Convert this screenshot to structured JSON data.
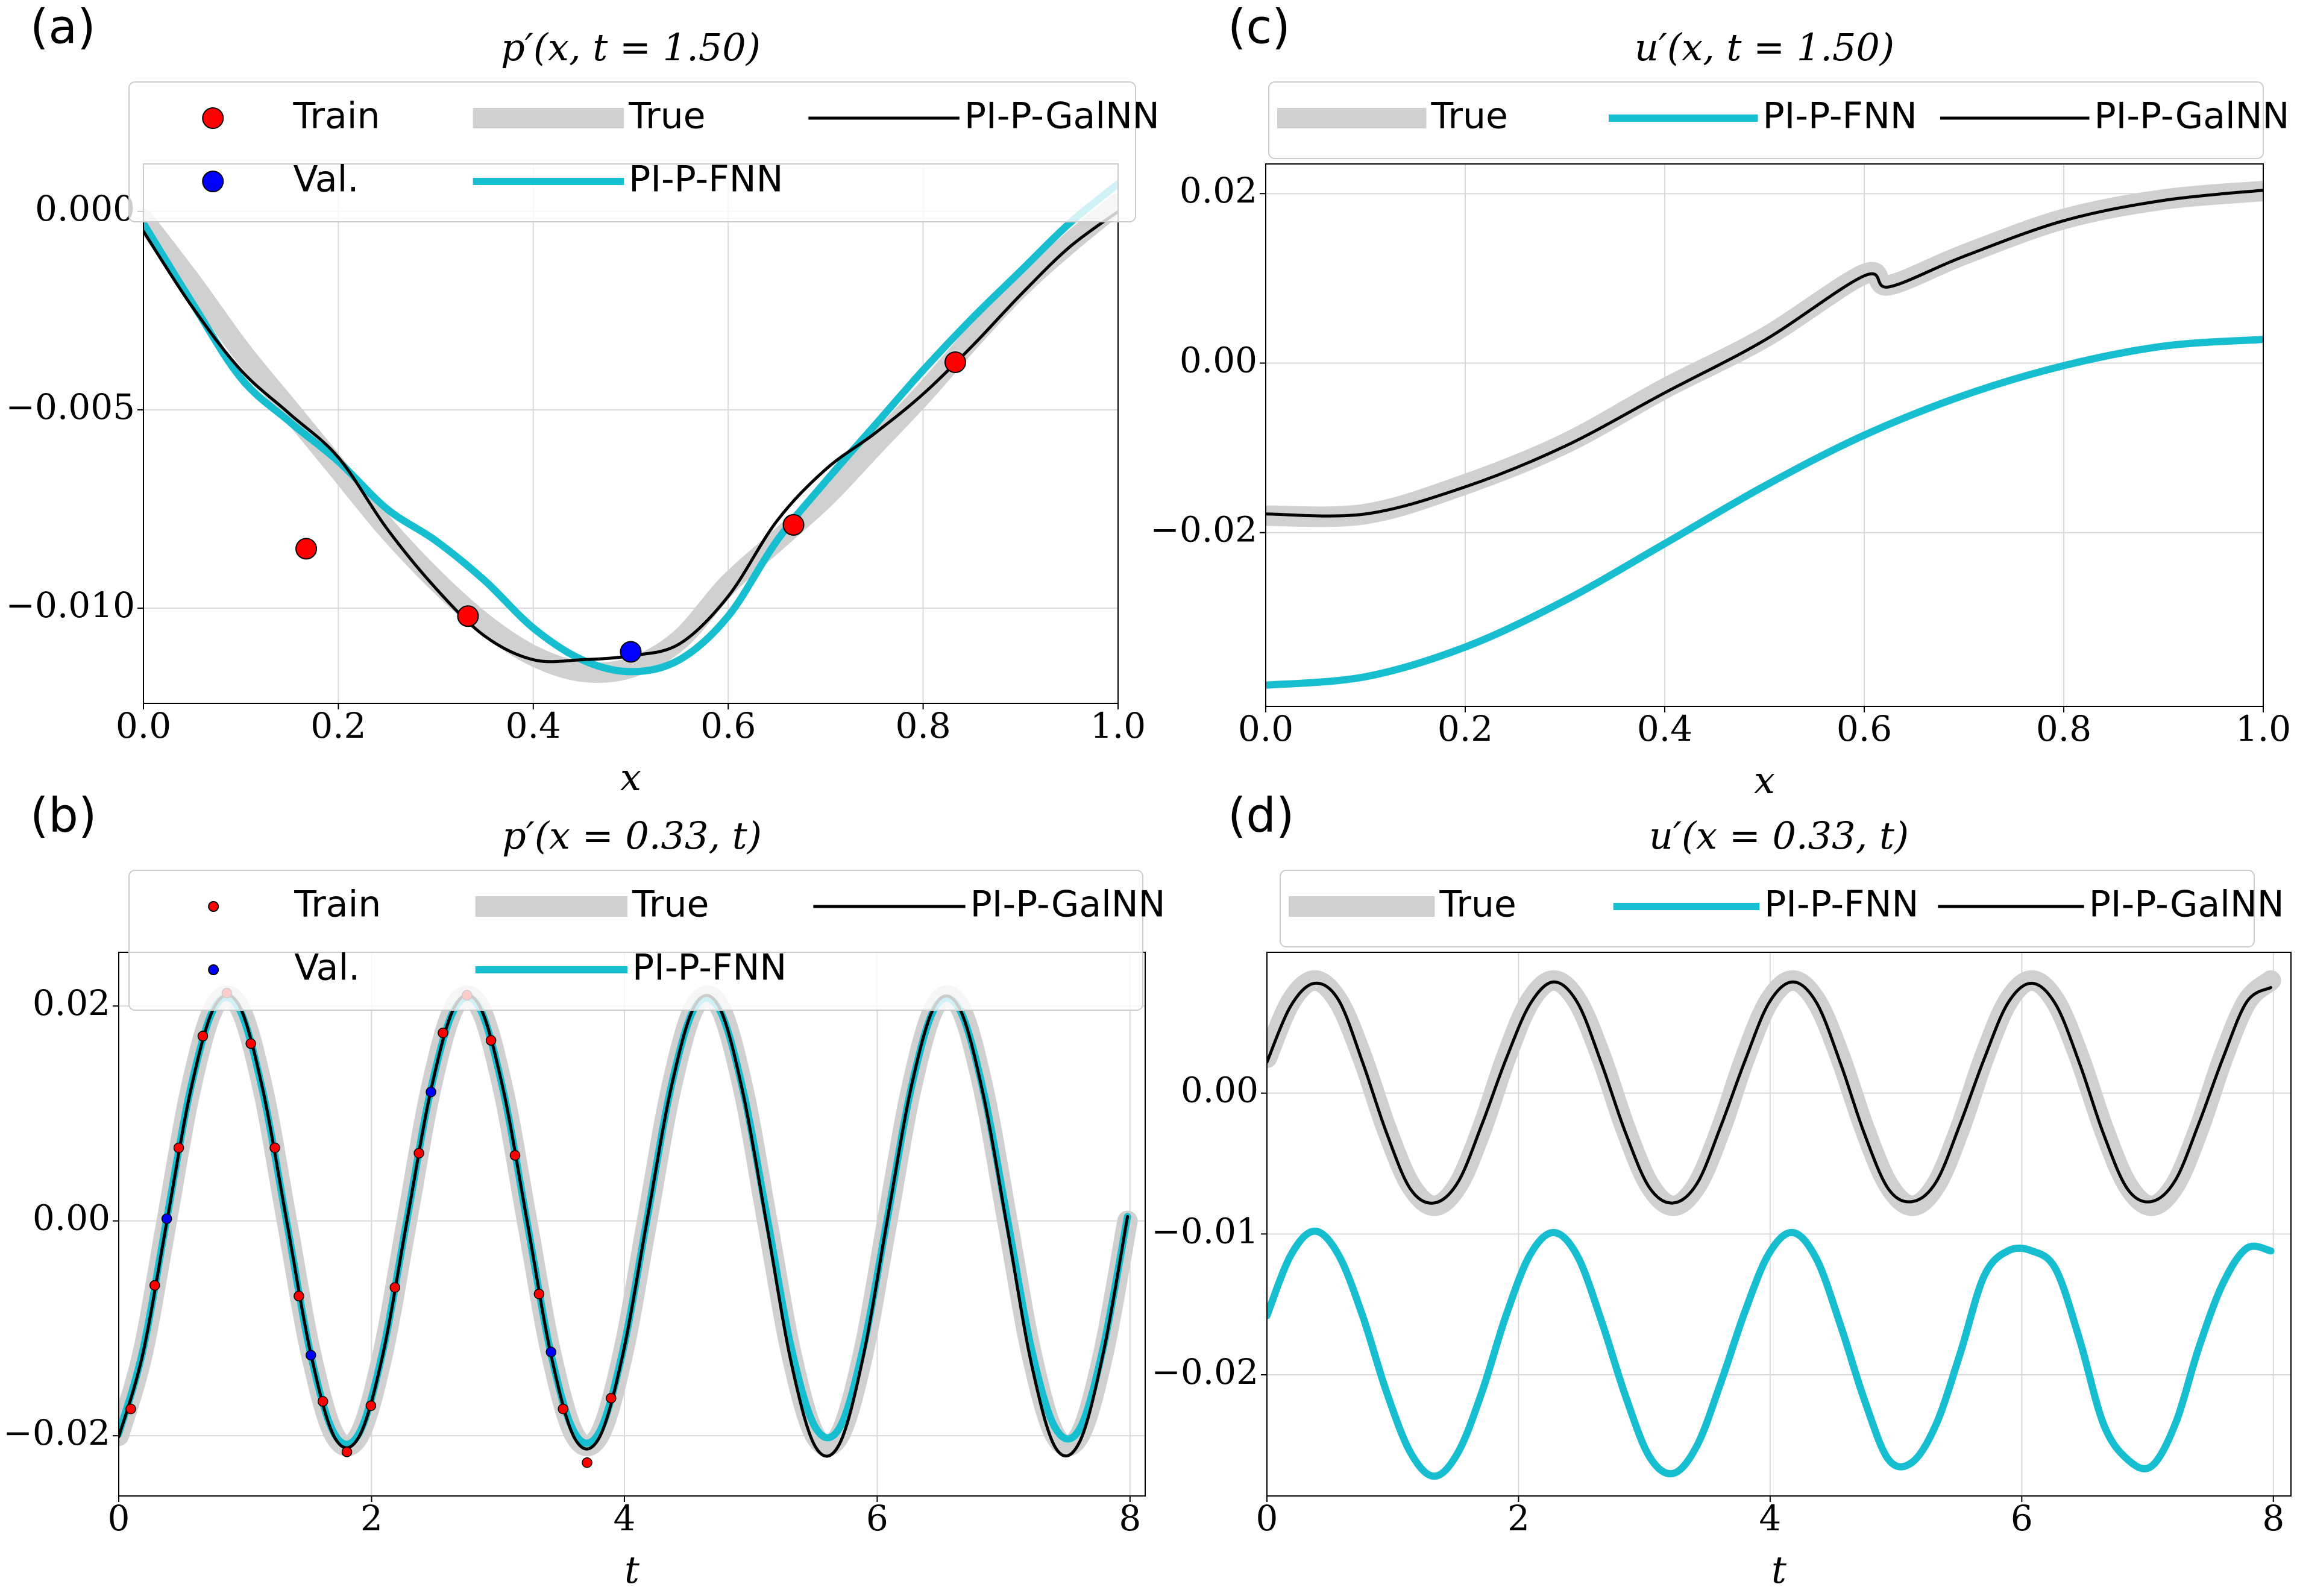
{
  "chart_data": [
    {
      "type": "line",
      "label": "(a)",
      "title": "p′(x, t = 1.50)",
      "xlabel": "x",
      "xlim": [
        0,
        1
      ],
      "ylim": [
        -0.0124,
        0.0012
      ],
      "xticks": [
        {
          "value": 0,
          "label": "0.0"
        },
        0.2,
        0.4,
        0.6,
        0.8,
        {
          "value": 1,
          "label": "1.0"
        }
      ],
      "yticks": [
        {
          "value": -0.01,
          "label": "−0.010"
        },
        {
          "value": -0.005,
          "label": "−0.005"
        },
        {
          "value": 0,
          "label": "0.000"
        }
      ],
      "grid": true,
      "legend_columns": 3,
      "x": [
        0,
        0.05,
        0.1,
        0.15,
        0.2,
        0.25,
        0.3,
        0.35,
        0.4,
        0.45,
        0.5,
        0.55,
        0.6,
        0.65,
        0.7,
        0.75,
        0.8,
        0.85,
        0.9,
        0.95,
        1
      ],
      "points": [
        {
          "name": "Train",
          "color": "#ff0000",
          "x": [
            0.167,
            0.333,
            0.667,
            0.833
          ],
          "values": [
            -0.0085,
            -0.0102,
            -0.0079,
            -0.0038
          ]
        },
        {
          "name": "Val.",
          "color": "#0000ff",
          "x": [
            0.5
          ],
          "values": [
            -0.0111
          ]
        }
      ],
      "series": [
        {
          "name": "True",
          "color": "#d0d0d0",
          "values": [
            -0.0002,
            -0.0018,
            -0.0035,
            -0.005,
            -0.0065,
            -0.008,
            -0.0093,
            -0.0104,
            -0.0112,
            -0.0116,
            -0.0115,
            -0.0108,
            -0.0094,
            -0.0083,
            -0.0072,
            -0.0059,
            -0.0046,
            -0.0032,
            -0.0019,
            -0.0008,
            0.0002
          ]
        },
        {
          "name": "PI-P-FNN",
          "color": "#17becf",
          "values": [
            -0.0003,
            -0.0023,
            -0.0042,
            -0.0053,
            -0.0063,
            -0.0075,
            -0.0083,
            -0.0093,
            -0.0105,
            -0.0113,
            -0.0116,
            -0.0113,
            -0.0102,
            -0.0083,
            -0.0068,
            -0.0054,
            -0.004,
            -0.0027,
            -0.0015,
            -0.0003,
            0.0007
          ]
        },
        {
          "name": "PI-P-GalNN",
          "color": "#000000",
          "values": [
            -0.0005,
            -0.0024,
            -0.004,
            -0.0051,
            -0.0062,
            -0.008,
            -0.0095,
            -0.0107,
            -0.0113,
            -0.0113,
            -0.0112,
            -0.0109,
            -0.0097,
            -0.0078,
            -0.0065,
            -0.0056,
            -0.0046,
            -0.0034,
            -0.0021,
            -0.0009,
            0
          ]
        }
      ]
    },
    {
      "type": "line",
      "label": "(b)",
      "title": "p′(x = 0.33, t)",
      "xlabel": "t",
      "xlim": [
        0,
        8.12
      ],
      "ylim": [
        -0.0256,
        0.025
      ],
      "xticks": [
        0,
        2,
        4,
        6,
        8
      ],
      "yticks": [
        {
          "value": -0.02,
          "label": "−0.02"
        },
        {
          "value": 0,
          "label": "0.00"
        },
        0.02
      ],
      "grid": true,
      "legend_columns": 3,
      "x": [
        0,
        0.19,
        0.38,
        0.57,
        0.76,
        0.95,
        1.14,
        1.33,
        1.52,
        1.71,
        1.9,
        2.09,
        2.28,
        2.47,
        2.66,
        2.85,
        3.04,
        3.23,
        3.42,
        3.61,
        3.8,
        3.99,
        4.18,
        4.37,
        4.56,
        4.75,
        4.94,
        5.13,
        5.32,
        5.51,
        5.7,
        5.89,
        6.08,
        6.27,
        6.46,
        6.65,
        6.84,
        7.03,
        7.22,
        7.41,
        7.6,
        7.79,
        7.98
      ],
      "points": [
        {
          "name": "Train",
          "color": "#ff0000",
          "x": [
            0.095,
            0.285,
            0.475,
            0.665,
            0.855,
            1.045,
            1.235,
            1.425,
            1.615,
            1.805,
            1.995,
            2.185,
            2.375,
            2.565,
            2.755,
            2.945,
            3.135,
            3.325,
            3.515,
            3.705,
            3.895
          ],
          "values": [
            -0.0175,
            -0.006,
            0.0068,
            0.0172,
            0.0212,
            0.0165,
            0.0068,
            -0.007,
            -0.0168,
            -0.0215,
            -0.0172,
            -0.0062,
            0.0063,
            0.0175,
            0.021,
            0.0168,
            0.0061,
            -0.0068,
            -0.0175,
            -0.0225,
            -0.0165
          ]
        },
        {
          "name": "Val.",
          "color": "#0000ff",
          "x": [
            0.38,
            1.52,
            2.47,
            3.42
          ],
          "values": [
            0.0002,
            -0.0125,
            0.012,
            -0.0122
          ]
        }
      ],
      "series": [
        {
          "name": "True",
          "color": "#d0d0d0",
          "values": [
            -0.02,
            -0.0123,
            0,
            0.0123,
            0.02,
            0.02,
            0.0123,
            0,
            -0.0123,
            -0.02,
            -0.02,
            -0.0123,
            0,
            0.0123,
            0.02,
            0.02,
            0.0123,
            0,
            -0.0123,
            -0.02,
            -0.02,
            -0.0123,
            0,
            0.0123,
            0.02,
            0.02,
            0.0123,
            0,
            -0.0123,
            -0.02,
            -0.02,
            -0.0123,
            0,
            0.0123,
            0.02,
            0.02,
            0.0123,
            0,
            -0.0123,
            -0.02,
            -0.02,
            -0.0123,
            0
          ]
        },
        {
          "name": "PI-P-FNN",
          "color": "#17becf",
          "values": [
            -0.0198,
            -0.0121,
            0.0002,
            0.0124,
            0.0199,
            0.0198,
            0.012,
            -0.0002,
            -0.0125,
            -0.0199,
            -0.0198,
            -0.0121,
            0.0001,
            0.0123,
            0.0198,
            0.0199,
            0.0122,
            -0.0001,
            -0.0124,
            -0.0198,
            -0.0197,
            -0.012,
            0.0002,
            0.0125,
            0.0199,
            0.0197,
            0.0121,
            0.0003,
            -0.0118,
            -0.0192,
            -0.0193,
            -0.0118,
            0.0002,
            0.0124,
            0.0199,
            0.0197,
            0.0121,
            0.0002,
            -0.0119,
            -0.0193,
            -0.0194,
            -0.0117,
            0.0004
          ]
        },
        {
          "name": "PI-P-GalNN",
          "color": "#000000",
          "values": [
            -0.0201,
            -0.0124,
            -0.0001,
            0.0122,
            0.02,
            0.0201,
            0.0122,
            -0.0001,
            -0.0124,
            -0.0202,
            -0.0201,
            -0.0124,
            0,
            0.0122,
            0.02,
            0.0201,
            0.0123,
            0,
            -0.0125,
            -0.0203,
            -0.0202,
            -0.0123,
            0.0001,
            0.0124,
            0.0201,
            0.0199,
            0.0118,
            -0.0006,
            -0.0132,
            -0.021,
            -0.0208,
            -0.0126,
            0.0001,
            0.0125,
            0.0201,
            0.0198,
            0.0117,
            -0.0007,
            -0.0133,
            -0.0211,
            -0.0206,
            -0.0122,
            0.0004
          ]
        }
      ]
    },
    {
      "type": "line",
      "label": "(c)",
      "title": "u′(x, t = 1.50)",
      "xlabel": "x",
      "xlim": [
        0,
        1
      ],
      "ylim": [
        -0.0405,
        0.0235
      ],
      "xticks": [
        {
          "value": 0,
          "label": "0.0"
        },
        0.2,
        0.4,
        0.6,
        0.8,
        {
          "value": 1,
          "label": "1.0"
        }
      ],
      "yticks": [
        {
          "value": -0.02,
          "label": "−0.02"
        },
        {
          "value": 0,
          "label": "0.00"
        },
        0.02
      ],
      "grid": true,
      "legend_columns": 3,
      "x": [
        0,
        0.1,
        0.2,
        0.3,
        0.4,
        0.5,
        0.6,
        0.625,
        0.7,
        0.8,
        0.9,
        1
      ],
      "points": [],
      "series": [
        {
          "name": "True",
          "color": "#d0d0d0",
          "values": [
            -0.018,
            -0.0178,
            -0.0143,
            -0.0095,
            -0.003,
            0.003,
            0.0105,
            0.0092,
            0.0128,
            0.017,
            0.0193,
            0.0203
          ]
        },
        {
          "name": "PI-P-FNN",
          "color": "#17becf",
          "x": [
            0,
            0.1,
            0.2,
            0.3,
            0.4,
            0.5,
            0.6,
            0.7,
            0.8,
            0.9,
            1
          ],
          "values": [
            -0.038,
            -0.037,
            -0.0335,
            -0.028,
            -0.0213,
            -0.0145,
            -0.0085,
            -0.0038,
            -0.0003,
            0.002,
            0.0028
          ]
        },
        {
          "name": "PI-P-GalNN",
          "color": "#000000",
          "values": [
            -0.0178,
            -0.0178,
            -0.0146,
            -0.0098,
            -0.0035,
            0.0027,
            0.0103,
            0.009,
            0.0126,
            0.0168,
            0.0192,
            0.0204
          ]
        }
      ]
    },
    {
      "type": "line",
      "label": "(d)",
      "title": "u′(x = 0.33, t)",
      "xlabel": "t",
      "xlim": [
        0,
        8.14
      ],
      "ylim": [
        -0.0286,
        0.01
      ],
      "xticks": [
        0,
        2,
        4,
        6,
        8
      ],
      "yticks": [
        {
          "value": -0.02,
          "label": "−0.02"
        },
        {
          "value": -0.01,
          "label": "−0.01"
        },
        {
          "value": 0,
          "label": "0.00"
        }
      ],
      "grid": true,
      "legend_columns": 3,
      "x": [
        0,
        0.19,
        0.38,
        0.57,
        0.76,
        0.95,
        1.14,
        1.33,
        1.52,
        1.71,
        1.9,
        2.09,
        2.28,
        2.47,
        2.66,
        2.85,
        3.04,
        3.23,
        3.42,
        3.61,
        3.8,
        3.99,
        4.18,
        4.37,
        4.56,
        4.75,
        4.94,
        5.13,
        5.32,
        5.51,
        5.7,
        5.89,
        6.08,
        6.27,
        6.46,
        6.65,
        6.84,
        7.03,
        7.22,
        7.41,
        7.6,
        7.79,
        7.98
      ],
      "points": [],
      "series": [
        {
          "name": "True",
          "color": "#d0d0d0",
          "values": [
            0.0025,
            0.0065,
            0.008,
            0.0065,
            0.0025,
            -0.0025,
            -0.0065,
            -0.008,
            -0.0065,
            -0.0025,
            0.0025,
            0.0065,
            0.008,
            0.0065,
            0.0025,
            -0.0025,
            -0.0065,
            -0.008,
            -0.0065,
            -0.0025,
            0.0025,
            0.0065,
            0.008,
            0.0065,
            0.0025,
            -0.0025,
            -0.0065,
            -0.008,
            -0.0065,
            -0.0025,
            0.0025,
            0.0065,
            0.008,
            0.0065,
            0.0025,
            -0.0025,
            -0.0065,
            -0.008,
            -0.0065,
            -0.0025,
            0.0025,
            0.0065,
            0.008
          ]
        },
        {
          "name": "PI-P-FNN",
          "color": "#17becf",
          "values": [
            -0.0158,
            -0.0115,
            -0.0098,
            -0.0115,
            -0.0158,
            -0.0212,
            -0.0255,
            -0.0272,
            -0.0255,
            -0.0212,
            -0.0158,
            -0.0115,
            -0.0099,
            -0.0116,
            -0.0162,
            -0.0215,
            -0.0258,
            -0.027,
            -0.025,
            -0.0205,
            -0.0155,
            -0.0114,
            -0.0099,
            -0.0118,
            -0.0165,
            -0.0218,
            -0.026,
            -0.0262,
            -0.0235,
            -0.0185,
            -0.013,
            -0.0112,
            -0.0112,
            -0.0125,
            -0.0175,
            -0.0235,
            -0.026,
            -0.0265,
            -0.0235,
            -0.018,
            -0.0135,
            -0.011,
            -0.0112
          ]
        },
        {
          "name": "PI-P-GalNN",
          "color": "#000000",
          "values": [
            0.0022,
            0.0062,
            0.0078,
            0.0066,
            0.0022,
            -0.0028,
            -0.0068,
            -0.0078,
            -0.0063,
            -0.0022,
            0.0024,
            0.0063,
            0.0079,
            0.0064,
            0.0021,
            -0.0028,
            -0.0067,
            -0.0078,
            -0.0064,
            -0.0023,
            0.0023,
            0.0064,
            0.0079,
            0.0064,
            0.0021,
            -0.0029,
            -0.0068,
            -0.0077,
            -0.0063,
            -0.0022,
            0.0024,
            0.0064,
            0.0078,
            0.0063,
            0.0021,
            -0.0029,
            -0.0068,
            -0.0077,
            -0.0062,
            -0.0021,
            0.0025,
            0.0065,
            0.0075
          ]
        }
      ]
    }
  ]
}
